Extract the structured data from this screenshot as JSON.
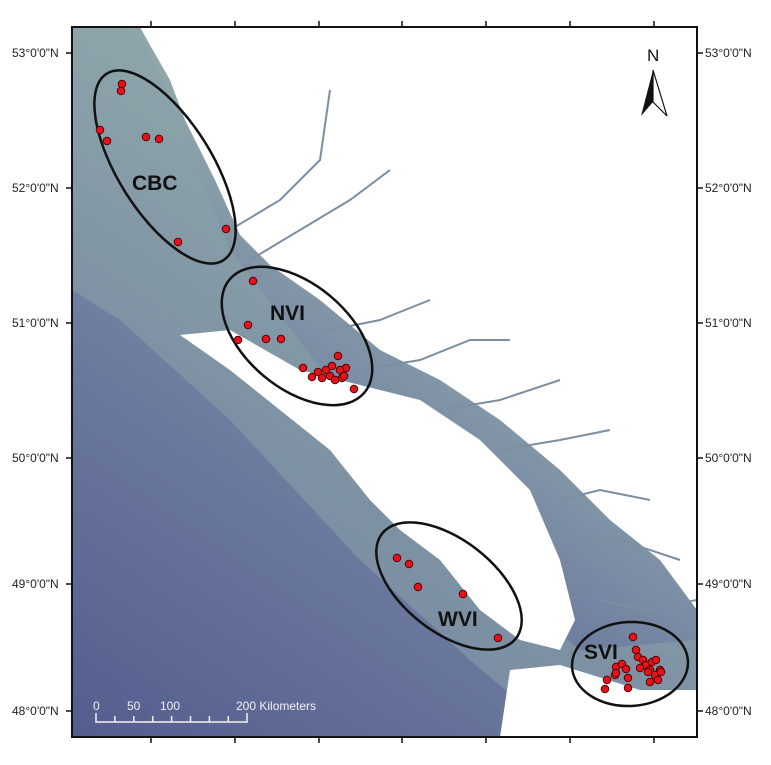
{
  "map": {
    "north_label": "N",
    "latitude_labels": [
      "53°0'0\"N",
      "52°0'0\"N",
      "51°0'0\"N",
      "50°0'0\"N",
      "49°0'0\"N",
      "48°0'0\"N"
    ],
    "regions": [
      {
        "label": "CBC"
      },
      {
        "label": "NVI"
      },
      {
        "label": "WVI"
      },
      {
        "label": "SVI"
      }
    ],
    "scale_bar": {
      "ticks": [
        "0",
        "50",
        "100",
        "200 Kilometers"
      ]
    },
    "colors": {
      "site_marker": "#e8101a",
      "land": "#ffffff",
      "ocean_shallow": "#8ea7ad",
      "ocean_deep": "#5b6594"
    }
  }
}
